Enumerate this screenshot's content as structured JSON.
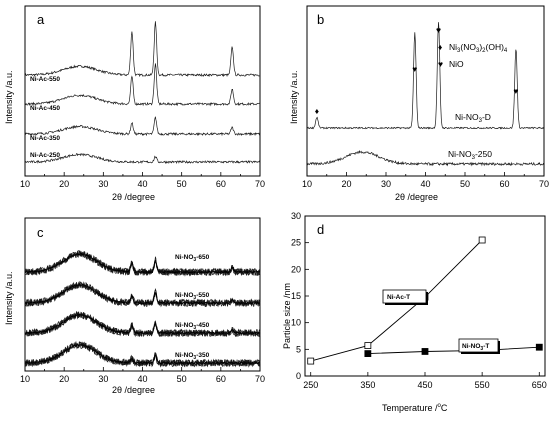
{
  "chart_data": [
    {
      "panel": "a",
      "type": "line",
      "xlabel": "2θ /degree",
      "ylabel": "Intensity /a.u.",
      "xlim": [
        10,
        70
      ],
      "xticks": [
        "10",
        "20",
        "30",
        "40",
        "50",
        "60",
        "70"
      ],
      "series": [
        {
          "name": "Ni-Ac-550",
          "amorphous_hump": 0.35,
          "peaks": [
            [
              37.3,
              0.7
            ],
            [
              43.3,
              0.85
            ],
            [
              62.9,
              0.45
            ]
          ]
        },
        {
          "name": "Ni-Ac-450",
          "amorphous_hump": 0.35,
          "peaks": [
            [
              37.3,
              0.55
            ],
            [
              43.3,
              0.8
            ],
            [
              62.9,
              0.3
            ]
          ]
        },
        {
          "name": "Ni-Ac-350",
          "amorphous_hump": 0.3,
          "peaks": [
            [
              37.3,
              0.2
            ],
            [
              43.3,
              0.3
            ],
            [
              62.9,
              0.12
            ]
          ]
        },
        {
          "name": "Ni-Ac-250",
          "amorphous_hump": 0.3,
          "peaks": [
            [
              43.3,
              0.1
            ]
          ]
        }
      ]
    },
    {
      "panel": "b",
      "type": "line",
      "xlabel": "2θ /degree",
      "ylabel": "Intensity /a.u.",
      "xlim": [
        10,
        70
      ],
      "xticks": [
        "10",
        "20",
        "30",
        "40",
        "50",
        "60",
        "70"
      ],
      "legend": [
        "Ni3(NO3)2(OH)4",
        "NiO"
      ],
      "series": [
        {
          "name": "Ni-NO3-D",
          "peaks": [
            [
              12.5,
              0.1
            ],
            [
              37.3,
              0.9
            ],
            [
              43.3,
              1.0
            ],
            [
              62.9,
              0.75
            ]
          ]
        },
        {
          "name": "Ni-NO3-250",
          "amorphous_hump": 0.2
        }
      ]
    },
    {
      "panel": "c",
      "type": "line",
      "xlabel": "2θ /degree",
      "ylabel": "Intensity /a.u.",
      "xlim": [
        10,
        70
      ],
      "xticks": [
        "10",
        "20",
        "30",
        "40",
        "50",
        "60",
        "70"
      ],
      "series": [
        {
          "name": "Ni-NO3-650",
          "amorphous_hump": 0.45,
          "peaks": [
            [
              37.3,
              0.3
            ],
            [
              43.3,
              0.4
            ],
            [
              62.9,
              0.15
            ]
          ]
        },
        {
          "name": "Ni-NO3-550",
          "amorphous_hump": 0.45,
          "peaks": [
            [
              37.3,
              0.25
            ],
            [
              43.3,
              0.35
            ],
            [
              62.9,
              0.1
            ]
          ]
        },
        {
          "name": "Ni-NO3-450",
          "amorphous_hump": 0.45,
          "peaks": [
            [
              37.3,
              0.25
            ],
            [
              43.3,
              0.3
            ],
            [
              62.9,
              0.1
            ]
          ]
        },
        {
          "name": "Ni-NO3-350",
          "amorphous_hump": 0.45,
          "peaks": [
            [
              37.3,
              0.15
            ],
            [
              43.3,
              0.25
            ]
          ]
        }
      ]
    },
    {
      "panel": "d",
      "type": "line",
      "xlabel": "Temperature /°C",
      "ylabel": "Particle size /nm",
      "xlim": [
        240,
        660
      ],
      "ylim": [
        0,
        30
      ],
      "xticks": [
        "250",
        "350",
        "450",
        "550",
        "650"
      ],
      "yticks": [
        "0",
        "5",
        "10",
        "15",
        "20",
        "25",
        "30"
      ],
      "series": [
        {
          "name": "Ni-Ac-T",
          "marker": "open-square",
          "x": [
            250,
            350,
            450,
            550
          ],
          "y": [
            2.8,
            5.7,
            14.8,
            25.5
          ]
        },
        {
          "name": "Ni-NO3-T",
          "marker": "filled-square",
          "x": [
            350,
            450,
            550,
            650
          ],
          "y": [
            4.2,
            4.6,
            4.8,
            5.4
          ]
        }
      ]
    }
  ],
  "panels": {
    "a": {
      "letter": "a",
      "ylabel": "Intensity /a.u.",
      "xlabel": "2θ /degree",
      "xticks": [
        "10",
        "20",
        "30",
        "40",
        "50",
        "60",
        "70"
      ],
      "curve_labels": [
        "Ni-Ac-550",
        "Ni-Ac-450",
        "Ni-Ac-350",
        "Ni-Ac-250"
      ]
    },
    "b": {
      "letter": "b",
      "ylabel": "Intensity /a.u.",
      "xlabel": "2θ /degree",
      "xticks": [
        "10",
        "20",
        "30",
        "40",
        "50",
        "60",
        "70"
      ],
      "legend_diamond": "♦",
      "legend_heart": "♥",
      "legend_item1_main": "Ni",
      "legend_item1_a": "3",
      "legend_item1_b": "(NO",
      "legend_item1_c": "3",
      "legend_item1_d": ")",
      "legend_item1_e": "2",
      "legend_item1_f": "(OH)",
      "legend_item1_g": "4",
      "legend_item2": "NiO",
      "curve1_a": "Ni-NO",
      "curve1_b": "3",
      "curve1_c": "-D",
      "curve2_a": "Ni-NO",
      "curve2_b": "3",
      "curve2_c": "-250"
    },
    "c": {
      "letter": "c",
      "ylabel": "Intensity /a.u.",
      "xlabel": "2θ /degree",
      "xticks": [
        "10",
        "20",
        "30",
        "40",
        "50",
        "60",
        "70"
      ],
      "curve_labels": [
        {
          "a": "Ni-NO",
          "b": "3",
          "c": "-650"
        },
        {
          "a": "Ni-NO",
          "b": "3",
          "c": "-550"
        },
        {
          "a": "Ni-NO",
          "b": "3",
          "c": "-450"
        },
        {
          "a": "Ni-NO",
          "b": "3",
          "c": "-350"
        }
      ]
    },
    "d": {
      "letter": "d",
      "ylabel": "Particle size /nm",
      "xlabel_a": "Temperature /",
      "xlabel_b": "o",
      "xlabel_c": "C",
      "xticks": [
        "250",
        "350",
        "450",
        "550",
        "650"
      ],
      "yticks": [
        "0",
        "5",
        "10",
        "15",
        "20",
        "25",
        "30"
      ],
      "series1_label": "Ni-Ac-T",
      "series2_a": "Ni-NO",
      "series2_b": "3",
      "series2_c": "-T"
    }
  }
}
